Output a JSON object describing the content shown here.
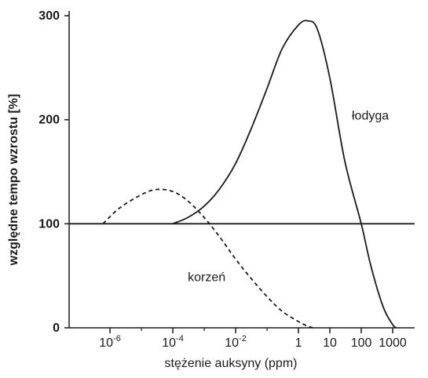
{
  "chart_data": {
    "type": "line",
    "xlabel": "stężenie auksyny (ppm)",
    "ylabel": "względne tempo wzrostu [%]",
    "x_scale": "log",
    "xlim": [
      5e-08,
      5000
    ],
    "ylim": [
      0,
      300
    ],
    "y_ticks": [
      {
        "value": 0,
        "label": "0"
      },
      {
        "value": 100,
        "label": "100"
      },
      {
        "value": 200,
        "label": "200"
      },
      {
        "value": 300,
        "label": "300"
      }
    ],
    "x_ticks_major": [
      {
        "value": 1e-06,
        "base": "10",
        "exp": "-6"
      },
      {
        "value": 0.0001,
        "base": "10",
        "exp": "-4"
      },
      {
        "value": 0.01,
        "base": "10",
        "exp": "-2"
      },
      {
        "value": 1,
        "base": "1",
        "exp": ""
      },
      {
        "value": 10,
        "base": "10",
        "exp": ""
      },
      {
        "value": 100,
        "base": "100",
        "exp": ""
      },
      {
        "value": 1000,
        "base": "1000",
        "exp": ""
      }
    ],
    "x_ticks_minor": [
      1e-05,
      0.001,
      0.1
    ],
    "reference_line": {
      "y": 100
    },
    "series": [
      {
        "name": "korzeń",
        "style": "dashed",
        "color": "#1a1a1a",
        "points": [
          [
            6e-07,
            100
          ],
          [
            2e-06,
            115
          ],
          [
            1e-05,
            128
          ],
          [
            3e-05,
            133
          ],
          [
            0.0001,
            131
          ],
          [
            0.0003,
            122
          ],
          [
            0.001,
            106
          ],
          [
            0.003,
            88
          ],
          [
            0.01,
            66
          ],
          [
            0.03,
            48
          ],
          [
            0.1,
            30
          ],
          [
            0.3,
            16
          ],
          [
            1,
            6
          ],
          [
            2,
            1.5
          ],
          [
            3,
            0
          ]
        ]
      },
      {
        "name": "łodyga",
        "style": "solid",
        "color": "#1a1a1a",
        "points": [
          [
            0.0001,
            100
          ],
          [
            0.0003,
            106
          ],
          [
            0.001,
            117
          ],
          [
            0.003,
            133
          ],
          [
            0.01,
            158
          ],
          [
            0.03,
            190
          ],
          [
            0.1,
            230
          ],
          [
            0.3,
            268
          ],
          [
            1,
            291
          ],
          [
            2,
            295
          ],
          [
            4,
            287
          ],
          [
            10,
            240
          ],
          [
            30,
            160
          ],
          [
            100,
            100
          ],
          [
            200,
            60
          ],
          [
            500,
            20
          ],
          [
            1000,
            3
          ],
          [
            1300,
            0
          ]
        ]
      }
    ]
  }
}
